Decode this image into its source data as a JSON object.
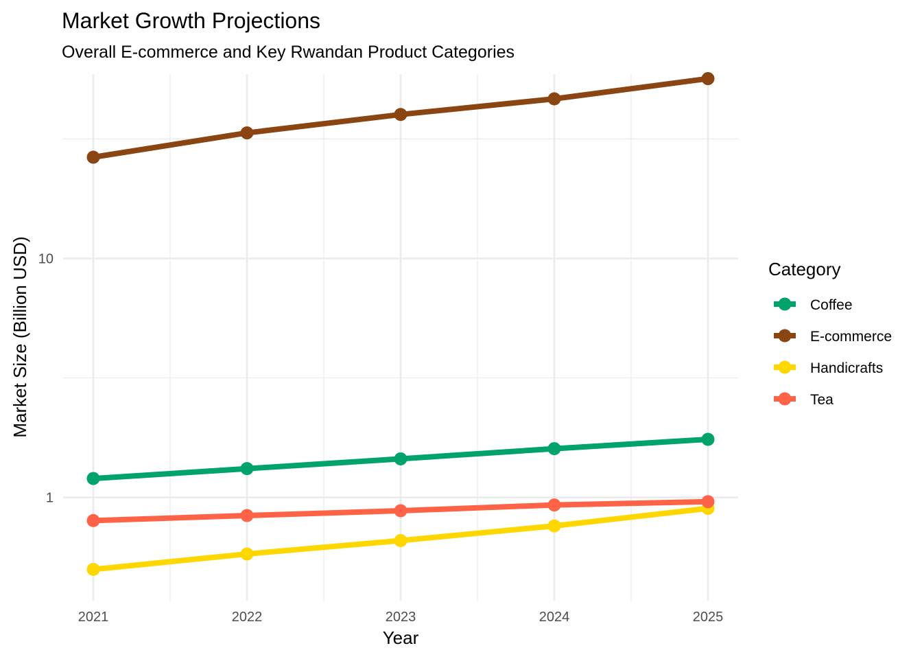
{
  "chart_data": {
    "type": "line",
    "title": "Market Growth Projections",
    "subtitle": "Overall E-commerce and Key Rwandan Product Categories",
    "xlabel": "Year",
    "ylabel": "Market Size (Billion USD)",
    "y_scale": "log10",
    "ylim": [
      0.37,
      59
    ],
    "y_ticks": [
      1,
      10
    ],
    "y_tick_labels": [
      "1",
      "10"
    ],
    "x": [
      2021,
      2022,
      2023,
      2024,
      2025
    ],
    "x_tick_labels": [
      "2021",
      "2022",
      "2023",
      "2024",
      "2025"
    ],
    "grid": true,
    "legend": {
      "title": "Category",
      "position": "right"
    },
    "series": [
      {
        "name": "Coffee",
        "color": "#00A36C",
        "values": [
          1.2,
          1.32,
          1.45,
          1.6,
          1.75
        ]
      },
      {
        "name": "E-commerce",
        "color": "#8B4513",
        "values": [
          26.5,
          33.5,
          40,
          46.5,
          56.5
        ]
      },
      {
        "name": "Handicrafts",
        "color": "#FFD700",
        "values": [
          0.5,
          0.58,
          0.66,
          0.76,
          0.9
        ]
      },
      {
        "name": "Tea",
        "color": "#FF6347",
        "values": [
          0.8,
          0.84,
          0.88,
          0.93,
          0.96
        ]
      }
    ]
  }
}
